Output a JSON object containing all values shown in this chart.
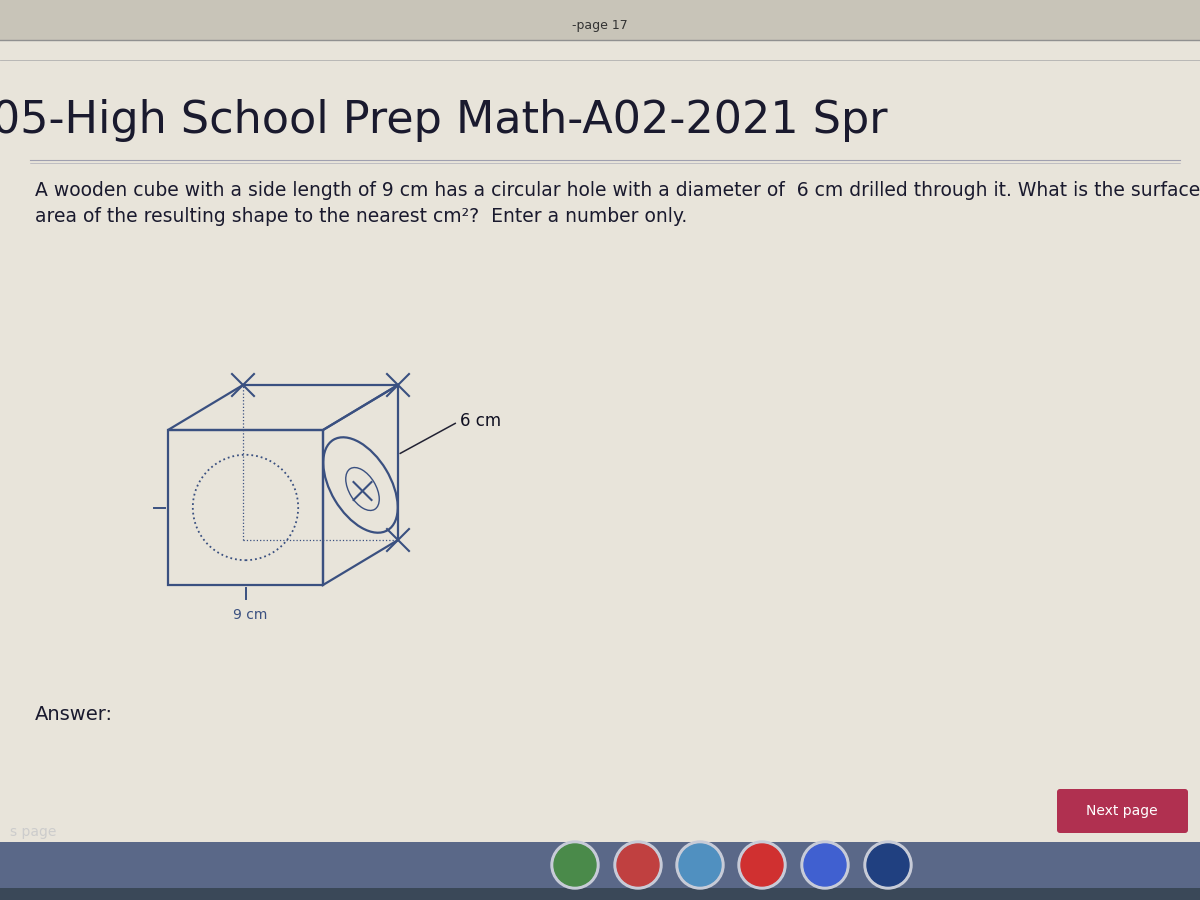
{
  "title": "05-High School Prep Math-A02-2021 Spr",
  "question_line1": "A wooden cube with a side length of 9 cm has a circular hole with a diameter of  6 cm drilled through it. What is the surface",
  "question_line2": "area of the resulting shape to the nearest cm²?  Enter a number only.",
  "answer_label": "Answer:",
  "next_page_label": "Next page",
  "s_page_label": "s page",
  "label_6cm": "6 cm",
  "label_9cm": "9 cm",
  "bg_color": "#ddd8cc",
  "content_bg": "#e8e4da",
  "top_strip_color": "#c8c4b8",
  "title_color": "#1a1a2e",
  "question_color": "#1a1a2e",
  "cube_color": "#3a5080",
  "answer_color": "#1a1a2e",
  "next_page_bg": "#b03050",
  "next_page_text": "#ffffff",
  "taskbar_color": "#5a6888",
  "taskbar_dark": "#3a4858",
  "top_bar_color": "#b8b4a8",
  "separator_color": "#a0a0b0"
}
